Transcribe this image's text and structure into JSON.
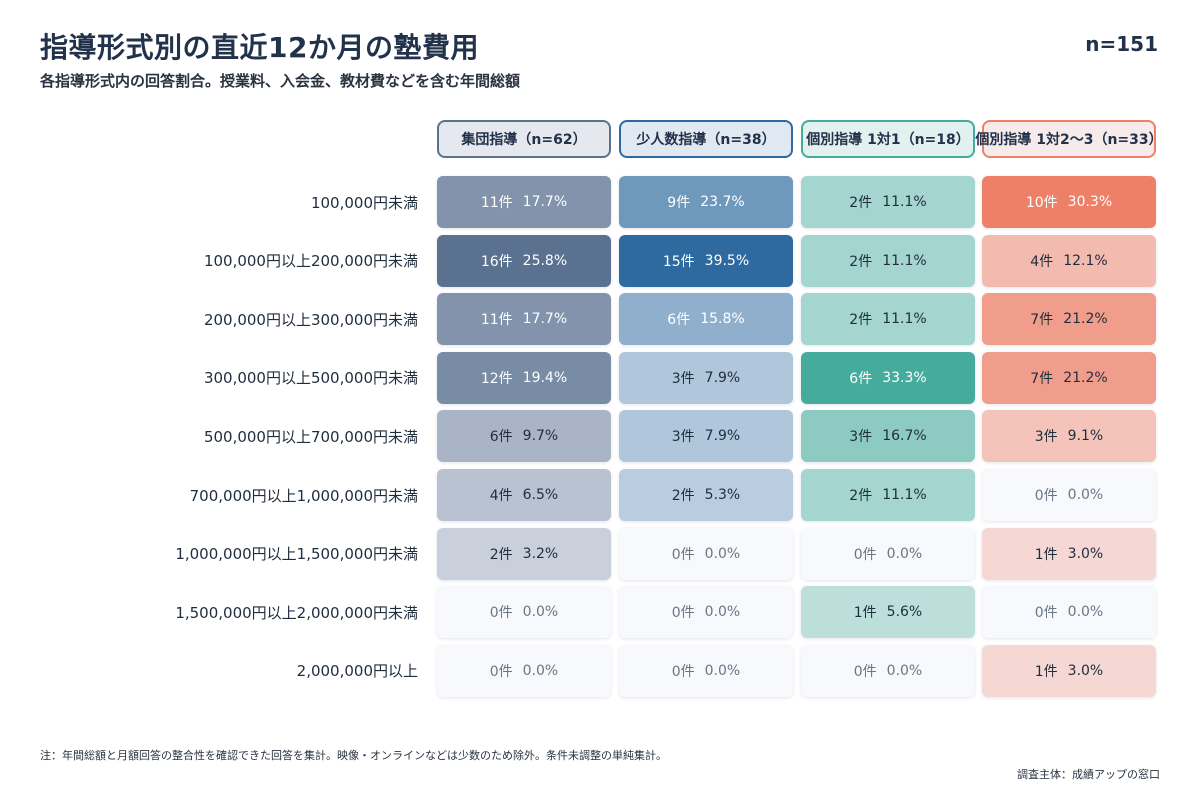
{
  "title": "指導形式別の直近12か月の塾費用",
  "subtitle": "各指導形式内の回答割合。授業料、入会金、教材費などを含む年間総額",
  "total_n": "n=151",
  "note": "注：年間総額と月額回答の整合性を確認できた回答を集計。映像・オンラインなどは少数のため除外。条件未調整の単純集計。",
  "source": "調査主体：成績アップの窓口",
  "colors": {
    "group": "#5a7190",
    "small": "#2e6aa0",
    "individual_1on1": "#45ab9c",
    "individual_1on2_3": "#ee8068"
  },
  "chart_data": {
    "type": "heatmap",
    "columns": [
      {
        "key": "group",
        "label": "集団指導（n=62）",
        "n": 62
      },
      {
        "key": "small",
        "label": "少人数指導（n=38）",
        "n": 38
      },
      {
        "key": "individual_1on1",
        "label": "個別指導 1対1（n=18）",
        "n": 18
      },
      {
        "key": "individual_1on2_3",
        "label": "個別指導 1対2〜3（n=33）",
        "n": 33
      }
    ],
    "rows": [
      "100,000円未満",
      "100,000円以上200,000円未満",
      "200,000円以上300,000円未満",
      "300,000円以上500,000円未満",
      "500,000円以上700,000円未満",
      "700,000円以上1,000,000円未満",
      "1,000,000円以上1,500,000円未満",
      "1,500,000円以上2,000,000円未満",
      "2,000,000円以上"
    ],
    "cells": [
      [
        {
          "count": "11件",
          "pct": "17.7%",
          "value": 17.7
        },
        {
          "count": "9件",
          "pct": "23.7%",
          "value": 23.7
        },
        {
          "count": "2件",
          "pct": "11.1%",
          "value": 11.1
        },
        {
          "count": "10件",
          "pct": "30.3%",
          "value": 30.3
        }
      ],
      [
        {
          "count": "16件",
          "pct": "25.8%",
          "value": 25.8
        },
        {
          "count": "15件",
          "pct": "39.5%",
          "value": 39.5
        },
        {
          "count": "2件",
          "pct": "11.1%",
          "value": 11.1
        },
        {
          "count": "4件",
          "pct": "12.1%",
          "value": 12.1
        }
      ],
      [
        {
          "count": "11件",
          "pct": "17.7%",
          "value": 17.7
        },
        {
          "count": "6件",
          "pct": "15.8%",
          "value": 15.8
        },
        {
          "count": "2件",
          "pct": "11.1%",
          "value": 11.1
        },
        {
          "count": "7件",
          "pct": "21.2%",
          "value": 21.2
        }
      ],
      [
        {
          "count": "12件",
          "pct": "19.4%",
          "value": 19.4
        },
        {
          "count": "3件",
          "pct": "7.9%",
          "value": 7.9
        },
        {
          "count": "6件",
          "pct": "33.3%",
          "value": 33.3
        },
        {
          "count": "7件",
          "pct": "21.2%",
          "value": 21.2
        }
      ],
      [
        {
          "count": "6件",
          "pct": "9.7%",
          "value": 9.7
        },
        {
          "count": "3件",
          "pct": "7.9%",
          "value": 7.9
        },
        {
          "count": "3件",
          "pct": "16.7%",
          "value": 16.7
        },
        {
          "count": "3件",
          "pct": "9.1%",
          "value": 9.1
        }
      ],
      [
        {
          "count": "4件",
          "pct": "6.5%",
          "value": 6.5
        },
        {
          "count": "2件",
          "pct": "5.3%",
          "value": 5.3
        },
        {
          "count": "2件",
          "pct": "11.1%",
          "value": 11.1
        },
        {
          "count": "0件",
          "pct": "0.0%",
          "value": 0.0
        }
      ],
      [
        {
          "count": "2件",
          "pct": "3.2%",
          "value": 3.2
        },
        {
          "count": "0件",
          "pct": "0.0%",
          "value": 0.0
        },
        {
          "count": "0件",
          "pct": "0.0%",
          "value": 0.0
        },
        {
          "count": "1件",
          "pct": "3.0%",
          "value": 3.0
        }
      ],
      [
        {
          "count": "0件",
          "pct": "0.0%",
          "value": 0.0
        },
        {
          "count": "0件",
          "pct": "0.0%",
          "value": 0.0
        },
        {
          "count": "1件",
          "pct": "5.6%",
          "value": 5.6
        },
        {
          "count": "0件",
          "pct": "0.0%",
          "value": 0.0
        }
      ],
      [
        {
          "count": "0件",
          "pct": "0.0%",
          "value": 0.0
        },
        {
          "count": "0件",
          "pct": "0.0%",
          "value": 0.0
        },
        {
          "count": "0件",
          "pct": "0.0%",
          "value": 0.0
        },
        {
          "count": "1件",
          "pct": "3.0%",
          "value": 3.0
        }
      ]
    ]
  }
}
